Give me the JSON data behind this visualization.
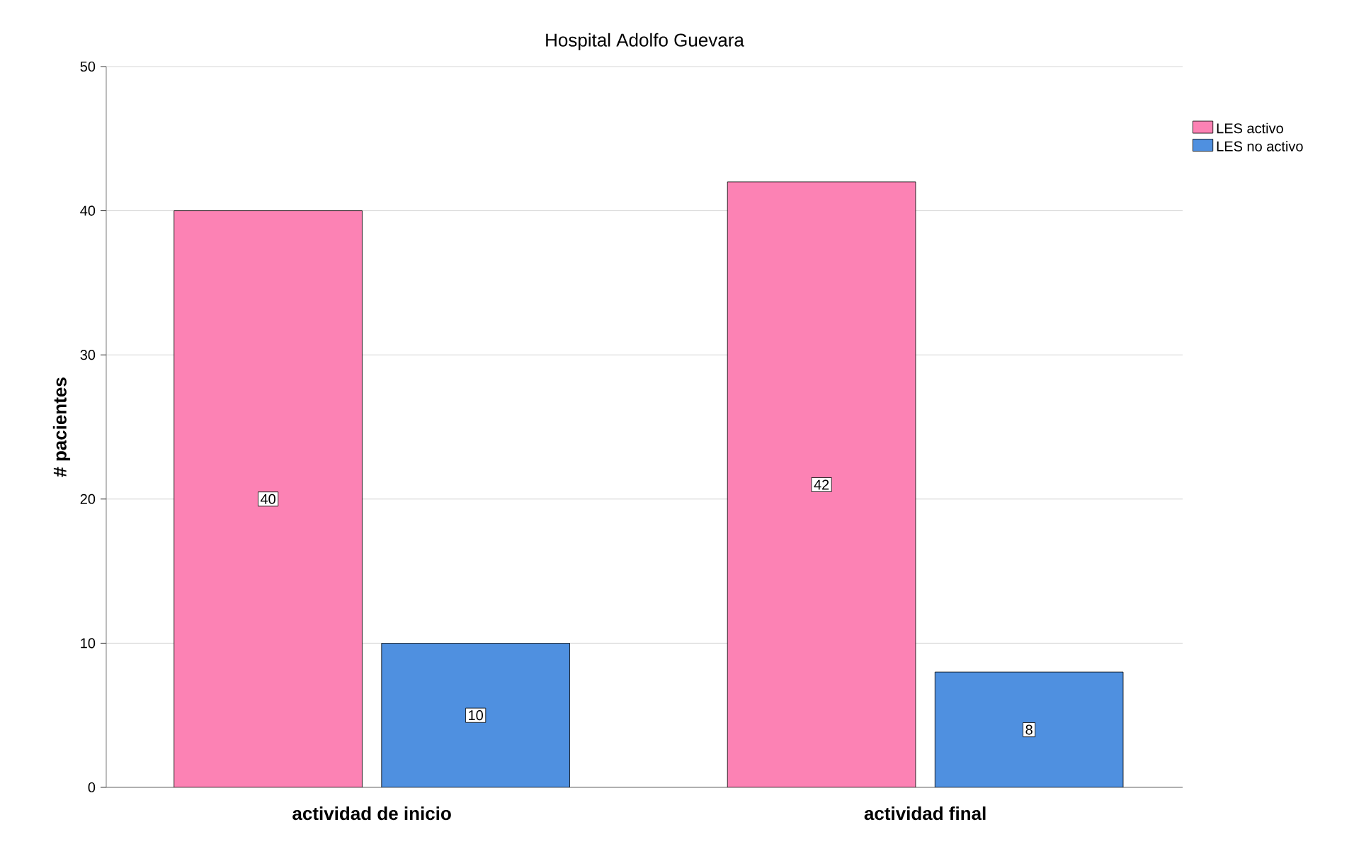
{
  "chart_data": {
    "type": "bar",
    "title": "Hospital Adolfo Guevara",
    "ylabel": "# pacientes",
    "categories": [
      "actividad de inicio",
      "actividad  final"
    ],
    "series": [
      {
        "name": "LES activo",
        "color": "#fc82b4",
        "values": [
          40,
          42
        ]
      },
      {
        "name": "LES no activo",
        "color": "#4f90e0",
        "values": [
          10,
          8
        ]
      }
    ],
    "ylim": [
      0,
      50
    ],
    "yticks": [
      0,
      10,
      20,
      30,
      40,
      50
    ],
    "grid": "y",
    "legend": "top right",
    "data_labels": true
  }
}
